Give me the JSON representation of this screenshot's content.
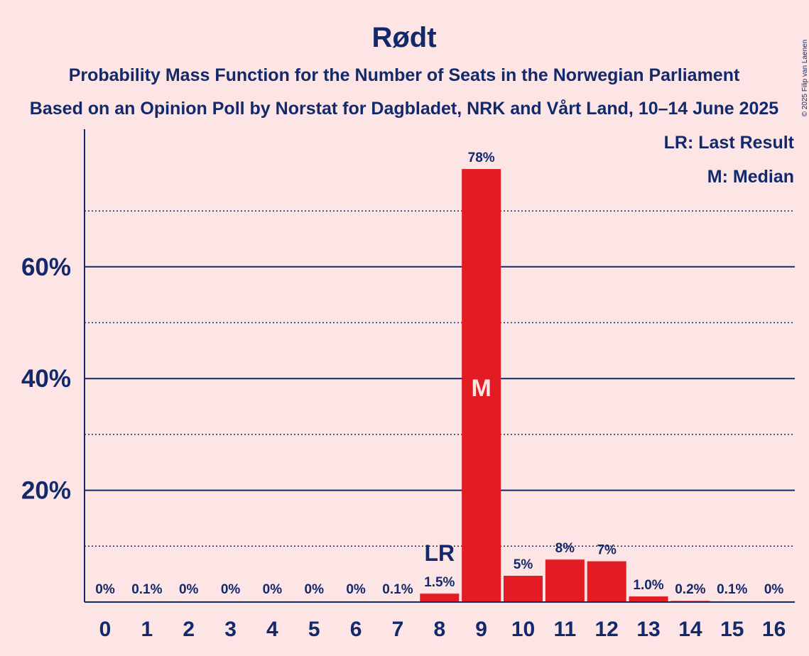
{
  "chart_data": {
    "type": "bar",
    "title": "Rødt",
    "subtitle1": "Probability Mass Function for the Number of Seats in the Norwegian Parliament",
    "subtitle2": "Based on an Opinion Poll by Norstat for Dagbladet, NRK and Vårt Land, 10–14 June 2025",
    "copyright": "© 2025 Filip van Laenen",
    "categories": [
      "0",
      "1",
      "2",
      "3",
      "4",
      "5",
      "6",
      "7",
      "8",
      "9",
      "10",
      "11",
      "12",
      "13",
      "14",
      "15",
      "16"
    ],
    "values": [
      0,
      0.1,
      0,
      0,
      0,
      0,
      0,
      0.1,
      1.5,
      77.5,
      4.7,
      7.6,
      7.3,
      1.0,
      0.2,
      0.1,
      0
    ],
    "value_labels": [
      "0%",
      "0.1%",
      "0%",
      "0%",
      "0%",
      "0%",
      "0%",
      "0.1%",
      "1.5%",
      "78%",
      "5%",
      "8%",
      "7%",
      "1.0%",
      "0.2%",
      "0.1%",
      "0%"
    ],
    "ylim": [
      0,
      84
    ],
    "yticks": [
      20,
      40,
      60
    ],
    "ytick_labels": [
      "20%",
      "40%",
      "60%"
    ],
    "minor_gridlines": [
      10,
      30,
      50,
      70
    ],
    "bar_color": "#E31B23",
    "text_color": "#12296B",
    "background": "#FDE4E5",
    "last_result_index": 8,
    "last_result_mark": "LR",
    "median_index": 9,
    "median_mark": "M",
    "legend": [
      "LR: Last Result",
      "M: Median"
    ],
    "legend_position": "top-right"
  }
}
